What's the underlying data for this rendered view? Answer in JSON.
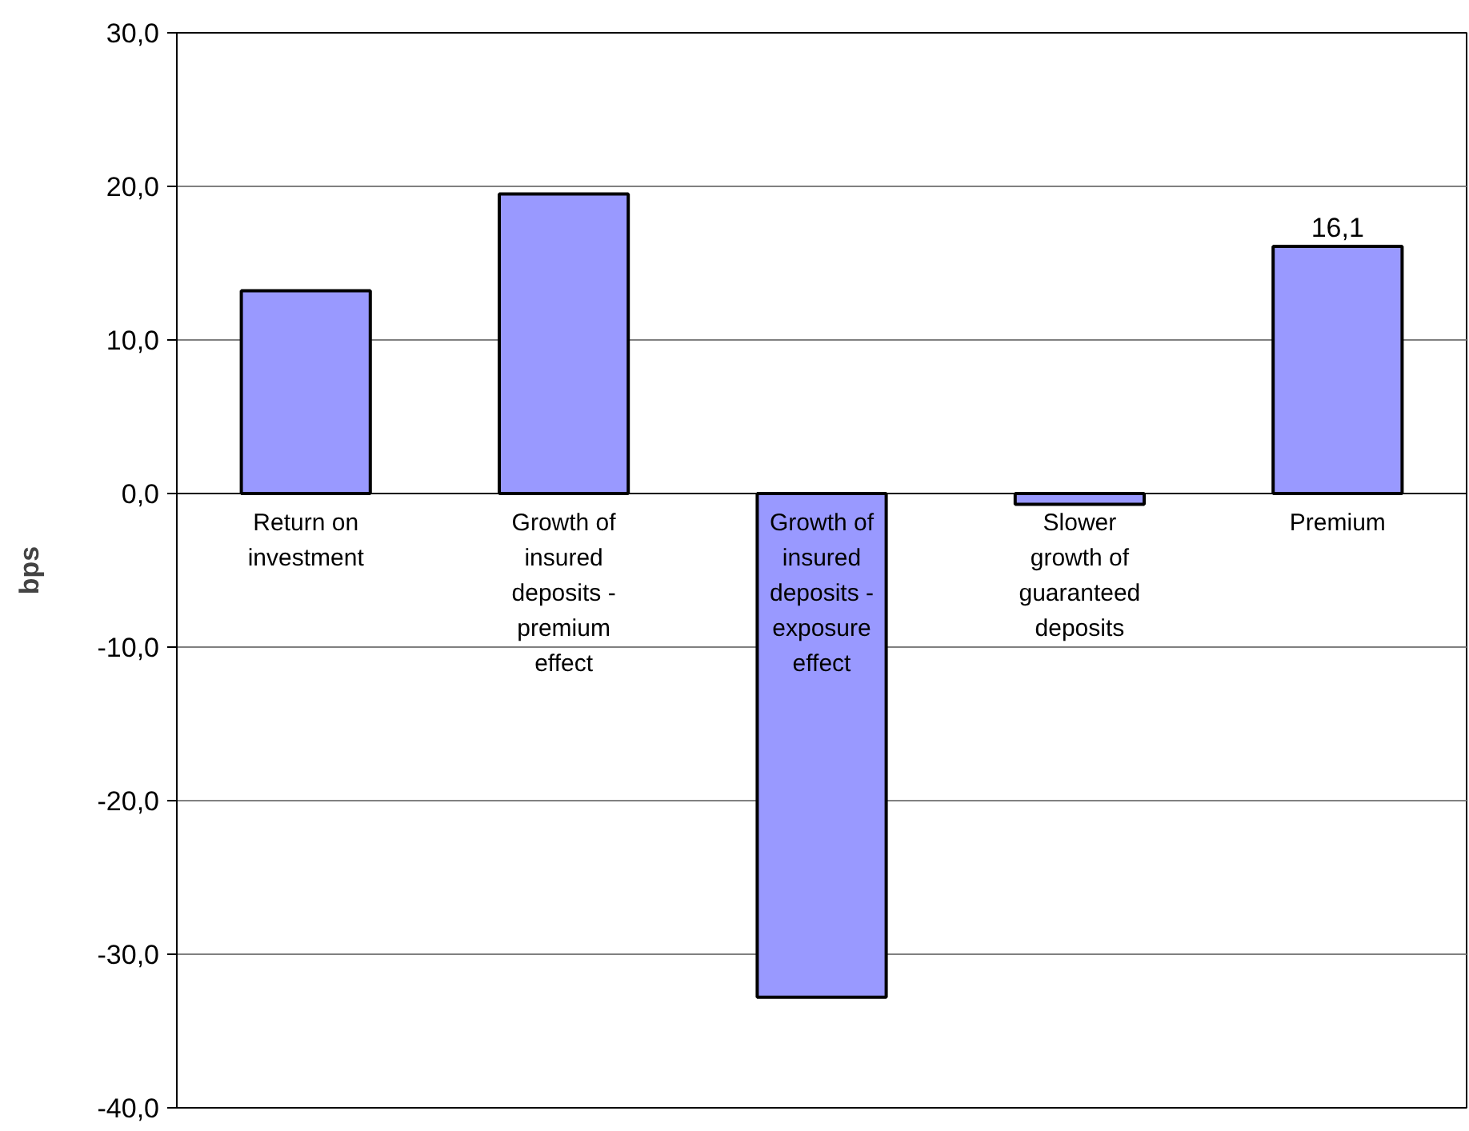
{
  "chart_data": {
    "type": "bar",
    "ylabel": "bps",
    "categories": [
      "Return on investment",
      "Growth of insured deposits - premium effect",
      "Growth of insured deposits - exposure effect",
      "Slower growth of guaranteed deposits",
      "Premium"
    ],
    "values": [
      13.2,
      19.5,
      -32.8,
      -0.7,
      16.1
    ],
    "value_labels": [
      null,
      null,
      null,
      null,
      "16,1"
    ],
    "color": "#9999ff",
    "ylim": [
      -40,
      30
    ],
    "yticks": [
      {
        "value": -40,
        "label": "-40,0"
      },
      {
        "value": -30,
        "label": "-30,0"
      },
      {
        "value": -20,
        "label": "-20,0"
      },
      {
        "value": -10,
        "label": "-10,0"
      },
      {
        "value": 0,
        "label": "0,0"
      },
      {
        "value": 10,
        "label": "10,0"
      },
      {
        "value": 20,
        "label": "20,0"
      },
      {
        "value": 30,
        "label": "30,0"
      }
    ],
    "grid": "y"
  }
}
